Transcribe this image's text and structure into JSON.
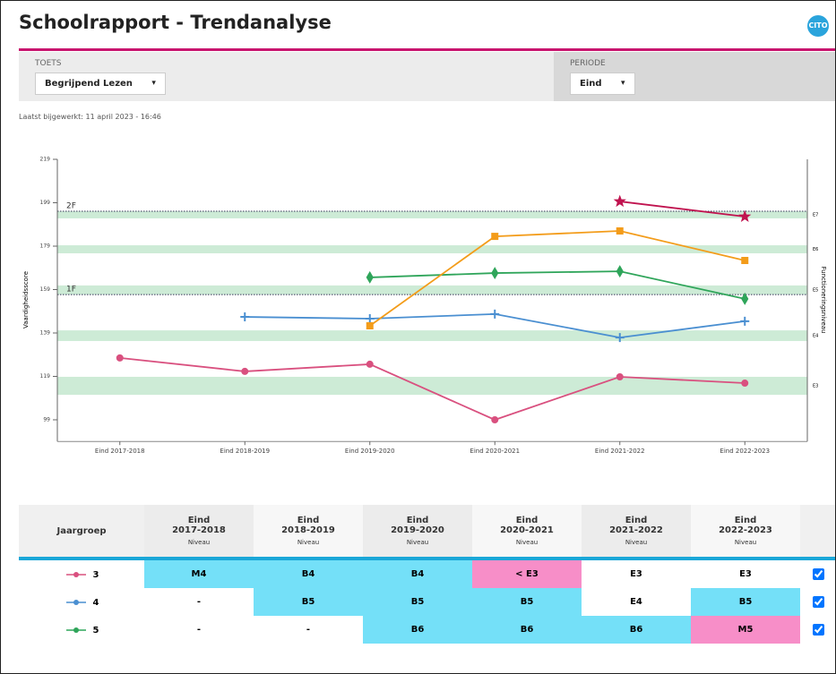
{
  "header": {
    "title": "Schoolrapport - Trendanalyse",
    "logo": "CITO"
  },
  "filters": {
    "test_label": "TOETS",
    "test_value": "Begrijpend Lezen",
    "period_label": "PERIODE",
    "period_value": "Eind"
  },
  "updated": "Laatst bijgewerkt: 11 april 2023 - 16:46",
  "chart_data": {
    "type": "line",
    "y_label": "Vaardigheidsscore",
    "y2_label": "Functioneringsniveau",
    "categories": [
      "Eind 2017-2018",
      "Eind 2018-2019",
      "Eind 2019-2020",
      "Eind 2020-2021",
      "Eind 2021-2022",
      "Eind 2022-2023"
    ],
    "ylim": [
      89,
      219
    ],
    "yticks": [
      99,
      119,
      139,
      159,
      179,
      199,
      219
    ],
    "bands": [
      {
        "label": "E7",
        "range": [
          191.8,
          195.1
        ]
      },
      {
        "label": "E6",
        "range": [
          175.7,
          179.4
        ]
      },
      {
        "label": "E5",
        "range": [
          156.7,
          160.9
        ]
      },
      {
        "label": "E4",
        "range": [
          135.3,
          140.2
        ]
      },
      {
        "label": "E3",
        "range": [
          110.5,
          118.8
        ]
      }
    ],
    "band_color": "#cdebd6",
    "reference_lines": [
      {
        "label": "2F",
        "value": 195.1
      },
      {
        "label": "1F",
        "value": 156.7
      }
    ],
    "series": [
      {
        "name": "3",
        "color": "#d9507f",
        "marker": "circle",
        "values": [
          127.5,
          121.3,
          124.6,
          99,
          118.8,
          115.9
        ]
      },
      {
        "name": "4",
        "color": "#4a8fd1",
        "marker": "plus",
        "values": [
          null,
          146.4,
          145.6,
          147.7,
          136.9,
          144.4
        ]
      },
      {
        "name": "5",
        "color": "#2fa55a",
        "marker": "diamond",
        "values": [
          null,
          null,
          164.6,
          166.6,
          167.4,
          154.7
        ]
      },
      {
        "color": "#f39c1a",
        "marker": "square",
        "values": [
          null,
          null,
          142.3,
          183.5,
          186,
          172.4
        ]
      },
      {
        "color": "#c0134f",
        "marker": "star",
        "values": [
          null,
          null,
          null,
          null,
          199.6,
          192.6
        ]
      }
    ]
  },
  "table": {
    "row_header": "Jaargroep",
    "columns": [
      {
        "period": "Eind",
        "year": "2017-2018",
        "sub": "Niveau"
      },
      {
        "period": "Eind",
        "year": "2018-2019",
        "sub": "Niveau"
      },
      {
        "period": "Eind",
        "year": "2019-2020",
        "sub": "Niveau"
      },
      {
        "period": "Eind",
        "year": "2020-2021",
        "sub": "Niveau"
      },
      {
        "period": "Eind",
        "year": "2021-2022",
        "sub": "Niveau"
      },
      {
        "period": "Eind",
        "year": "2022-2023",
        "sub": "Niveau"
      }
    ],
    "rows": [
      {
        "group": "3",
        "cells": [
          {
            "text": "M4",
            "color": "#74e0f8"
          },
          {
            "text": "B4",
            "color": "#74e0f8"
          },
          {
            "text": "B4",
            "color": "#74e0f8"
          },
          {
            "text": "< E3",
            "color": "#f78ec8"
          },
          {
            "text": "E3"
          },
          {
            "text": "E3"
          }
        ]
      },
      {
        "group": "4",
        "cells": [
          {
            "text": "-"
          },
          {
            "text": "B5",
            "color": "#74e0f8"
          },
          {
            "text": "B5",
            "color": "#74e0f8"
          },
          {
            "text": "B5",
            "color": "#74e0f8"
          },
          {
            "text": "E4"
          },
          {
            "text": "B5",
            "color": "#74e0f8"
          }
        ]
      },
      {
        "group": "5",
        "cells": [
          {
            "text": "-"
          },
          {
            "text": "-"
          },
          {
            "text": "B6",
            "color": "#74e0f8"
          },
          {
            "text": "B6",
            "color": "#74e0f8"
          },
          {
            "text": "B6",
            "color": "#74e0f8"
          },
          {
            "text": "M5",
            "color": "#f78ec8"
          }
        ]
      }
    ]
  }
}
